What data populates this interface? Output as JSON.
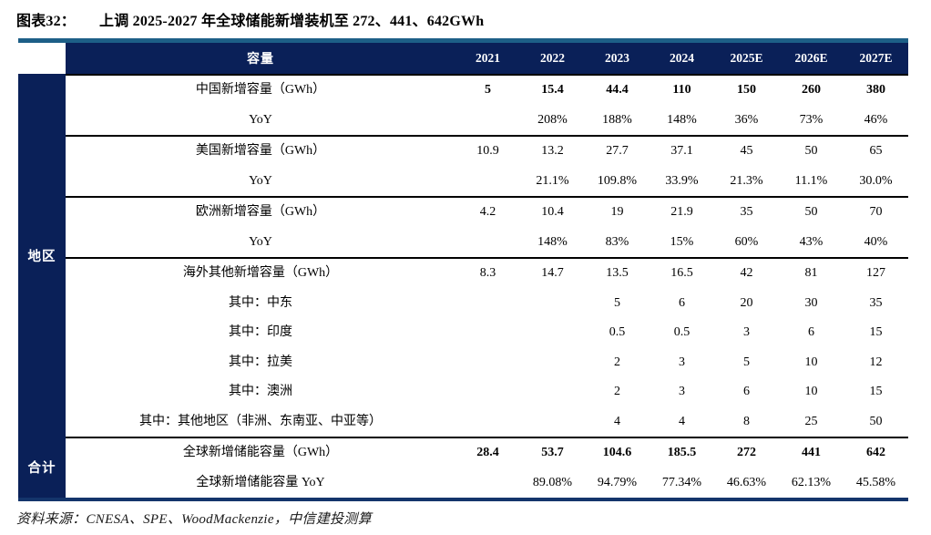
{
  "title": {
    "figure_label": "图表32：",
    "text": "上调 2025-2027 年全球储能新增装机至 272、441、642GWh"
  },
  "source": "资料来源：CNESA、SPE、WoodMackenzie，中信建投测算",
  "colors": {
    "header_navy": "#0a2058",
    "top_rule_blue": "#1d5f87",
    "bottom_rule_navy": "#14356b",
    "section_divider": "#000000"
  },
  "table": {
    "sidebar": {
      "region_label": "地区",
      "total_label": "合计"
    },
    "layout_sections": [
      [
        0,
        1
      ],
      [
        2,
        3
      ],
      [
        4,
        5
      ],
      [
        6,
        7,
        8,
        9,
        10,
        11
      ],
      [
        12,
        13
      ]
    ]
  },
  "chart_data": {
    "type": "table",
    "title": "图表32：上调 2025-2027 年全球储能新增装机至 272、441、642GWh",
    "columns": [
      "容量",
      "2021",
      "2022",
      "2023",
      "2024",
      "2025E",
      "2026E",
      "2027E"
    ],
    "row_groups": {
      "地区": [
        0,
        1,
        2,
        3,
        4,
        5,
        6,
        7,
        8,
        9,
        10,
        11
      ],
      "合计": [
        12,
        13
      ]
    },
    "rows": [
      {
        "label": "中国新增容量（GWh）",
        "bold_values": true,
        "values": [
          "5",
          "15.4",
          "44.4",
          "110",
          "150",
          "260",
          "380"
        ]
      },
      {
        "label": "YoY",
        "bold_values": false,
        "values": [
          "",
          "208%",
          "188%",
          "148%",
          "36%",
          "73%",
          "46%"
        ]
      },
      {
        "label": "美国新增容量（GWh）",
        "bold_values": false,
        "values": [
          "10.9",
          "13.2",
          "27.7",
          "37.1",
          "45",
          "50",
          "65"
        ]
      },
      {
        "label": "YoY",
        "bold_values": false,
        "values": [
          "",
          "21.1%",
          "109.8%",
          "33.9%",
          "21.3%",
          "11.1%",
          "30.0%"
        ]
      },
      {
        "label": "欧洲新增容量（GWh）",
        "bold_values": false,
        "values": [
          "4.2",
          "10.4",
          "19",
          "21.9",
          "35",
          "50",
          "70"
        ]
      },
      {
        "label": "YoY",
        "bold_values": false,
        "values": [
          "",
          "148%",
          "83%",
          "15%",
          "60%",
          "43%",
          "40%"
        ]
      },
      {
        "label": "海外其他新增容量（GWh）",
        "bold_values": false,
        "values": [
          "8.3",
          "14.7",
          "13.5",
          "16.5",
          "42",
          "81",
          "127"
        ]
      },
      {
        "label": "其中：中东",
        "bold_values": false,
        "values": [
          "",
          "",
          "5",
          "6",
          "20",
          "30",
          "35"
        ]
      },
      {
        "label": "其中：印度",
        "bold_values": false,
        "values": [
          "",
          "",
          "0.5",
          "0.5",
          "3",
          "6",
          "15"
        ]
      },
      {
        "label": "其中：拉美",
        "bold_values": false,
        "values": [
          "",
          "",
          "2",
          "3",
          "5",
          "10",
          "12"
        ]
      },
      {
        "label": "其中：澳洲",
        "bold_values": false,
        "values": [
          "",
          "",
          "2",
          "3",
          "6",
          "10",
          "15"
        ]
      },
      {
        "label": "其中：其他地区（非洲、东南亚、中亚等）",
        "bold_values": false,
        "values": [
          "",
          "",
          "4",
          "4",
          "8",
          "25",
          "50"
        ]
      },
      {
        "label": "全球新增储能容量（GWh）",
        "bold_values": true,
        "values": [
          "28.4",
          "53.7",
          "104.6",
          "185.5",
          "272",
          "441",
          "642"
        ]
      },
      {
        "label": "全球新增储能容量 YoY",
        "bold_values": false,
        "values": [
          "",
          "89.08%",
          "94.79%",
          "77.34%",
          "46.63%",
          "62.13%",
          "45.58%"
        ]
      }
    ],
    "source": "资料来源：CNESA、SPE、WoodMackenzie，中信建投测算"
  }
}
